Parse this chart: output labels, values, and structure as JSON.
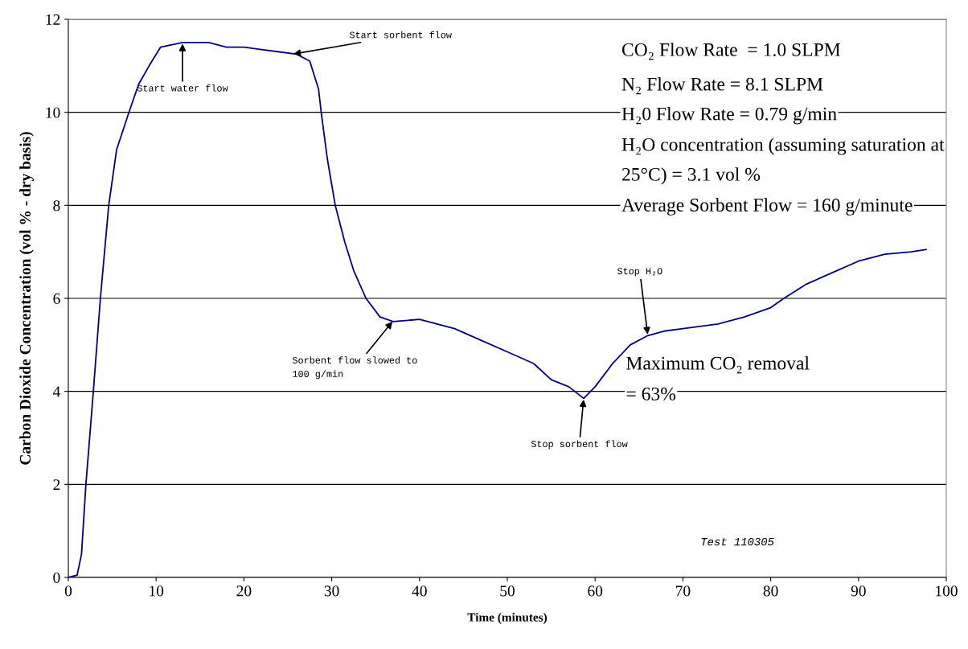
{
  "chart_data": {
    "type": "line",
    "xlabel": "Time (minutes)",
    "ylabel": "Carbon Dioxide Concentration (vol % - dry basis)",
    "xlim": [
      0,
      100
    ],
    "ylim": [
      0,
      12
    ],
    "xticks": [
      0,
      10,
      20,
      30,
      40,
      50,
      60,
      70,
      80,
      90,
      100
    ],
    "yticks": [
      0,
      2,
      4,
      6,
      8,
      10,
      12
    ],
    "grid": "y",
    "marker": "none",
    "line_style": "solid",
    "series": [
      {
        "color": "#000080",
        "x": [
          0,
          1,
          1.5,
          2,
          2.85,
          3.65,
          4.6,
          5.5,
          6.9,
          8,
          9.2,
          10.5,
          13,
          16,
          18,
          20,
          22,
          24,
          26,
          27.5,
          28.5,
          28.8,
          29.5,
          30.4,
          31.5,
          32.5,
          33.9,
          35.5,
          37,
          40,
          42,
          44,
          47,
          50,
          53,
          55,
          57,
          58.7,
          60,
          62,
          64,
          66,
          68,
          70,
          74,
          77,
          80,
          81.5,
          84,
          87,
          90,
          93,
          96,
          97.7
        ],
        "values": [
          0,
          0.05,
          0.5,
          2,
          4,
          6,
          8,
          9.2,
          10,
          10.6,
          11,
          11.4,
          11.5,
          11.5,
          11.4,
          11.4,
          11.35,
          11.3,
          11.25,
          11.1,
          10.5,
          10,
          9,
          8,
          7.2,
          6.6,
          6,
          5.6,
          5.5,
          5.55,
          5.45,
          5.35,
          5.1,
          4.85,
          4.6,
          4.25,
          4.1,
          3.85,
          4.1,
          4.6,
          5,
          5.2,
          5.3,
          5.35,
          5.45,
          5.6,
          5.8,
          6,
          6.3,
          6.55,
          6.8,
          6.95,
          7,
          7.05
        ]
      }
    ],
    "annotations": [
      {
        "text": "Start water flow",
        "x": 13,
        "y": 11.5
      },
      {
        "text": "Start sorbent flow",
        "x": 25.5,
        "y": 11.25
      },
      {
        "text": "Sorbent flow slowed to\n100 g/min",
        "x": 37,
        "y": 5.52
      },
      {
        "text": "Stop sorbent flow",
        "x": 58.7,
        "y": 3.85
      },
      {
        "text": "Stop H₂O",
        "x": 66,
        "y": 5.2
      },
      "CO₂ Flow Rate  = 1.0 SLPM",
      "N₂ Flow Rate = 8.1 SLPM",
      "H₂0 Flow Rate = 0.79 g/min",
      "H₂O concentration (assuming saturation at",
      "25°C) = 3.1 vol %",
      "Average Sorbent Flow = 160 g/minute",
      "Maximum CO₂ removal",
      "= 63%",
      "Test 110305"
    ]
  }
}
